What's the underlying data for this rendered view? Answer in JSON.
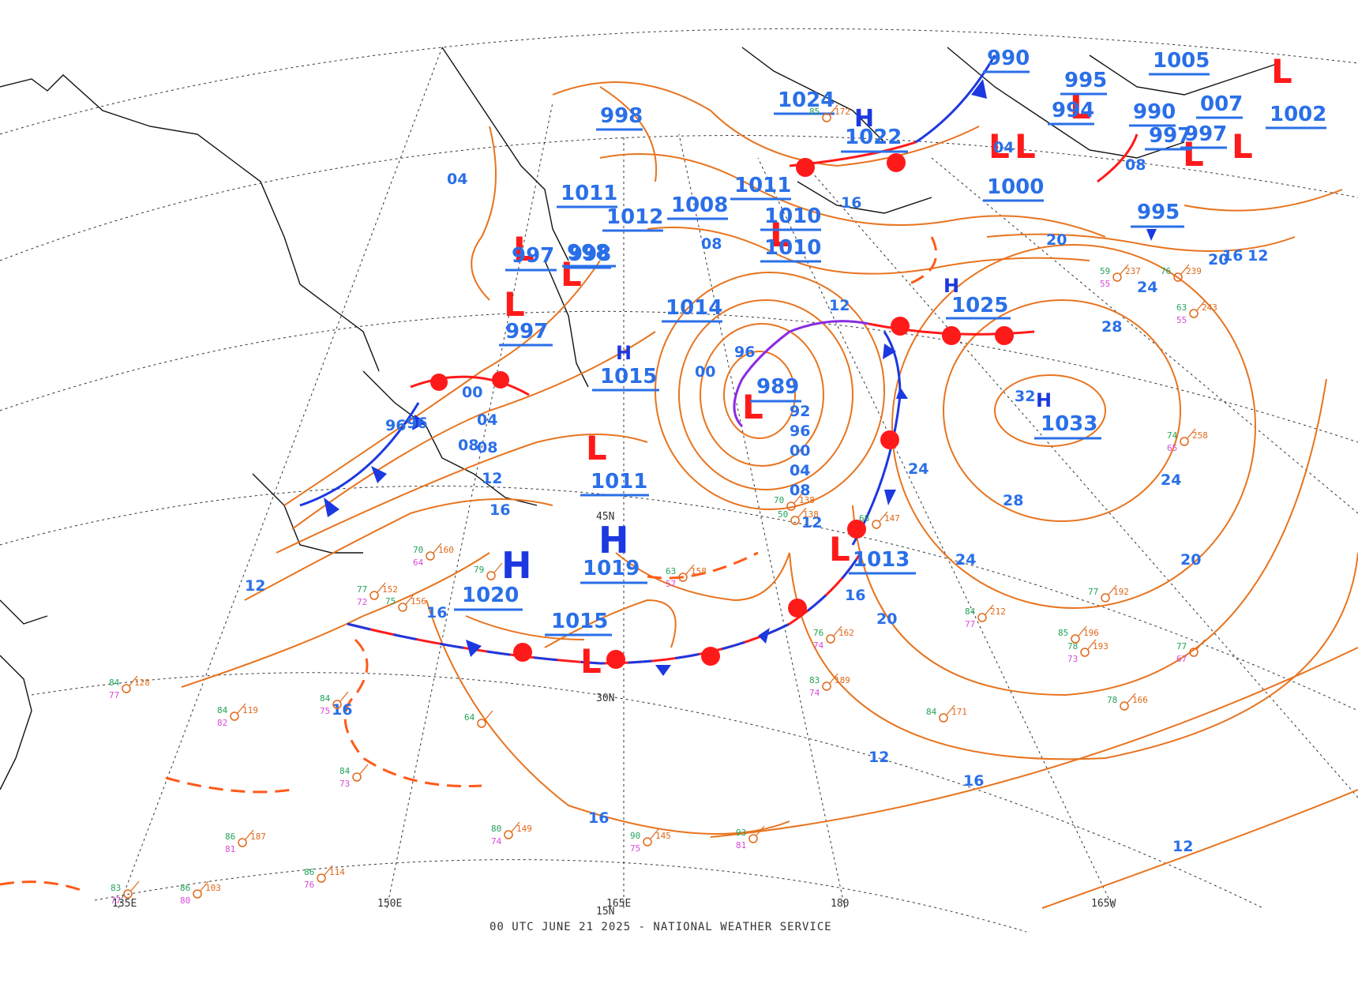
{
  "colors": {
    "isobar": "#e8741f",
    "label": "#2a6fe8",
    "high": "#1c38e0",
    "low": "#ff1a1a",
    "warm_front": "#ff1a1a",
    "cold_front": "#1c38e0",
    "occluded": "#8a2be2",
    "grid": "#333333",
    "coast": "#111111"
  },
  "footer": "00 UTC JUNE 21 2025 - NATIONAL WEATHER SERVICE",
  "grid_labels": {
    "lon": [
      "135E",
      "150E",
      "165E",
      "180",
      "165W"
    ],
    "lat": [
      "45N",
      "30N",
      "15N"
    ]
  },
  "highs": [
    {
      "id": "h1019",
      "value": "1019"
    },
    {
      "id": "h1020",
      "value": "1020"
    },
    {
      "id": "h1022",
      "value": "1022"
    },
    {
      "id": "h1033",
      "value": "1033"
    },
    {
      "id": "h1025",
      "value": "1025"
    },
    {
      "id": "h1015b",
      "value": "1015"
    }
  ],
  "lows": [
    {
      "id": "l989",
      "value": "989"
    },
    {
      "id": "l1011",
      "value": "1011"
    },
    {
      "id": "l997",
      "value": "997"
    },
    {
      "id": "l1013",
      "value": "1013"
    },
    {
      "id": "l1015",
      "value": "1015"
    },
    {
      "id": "l998",
      "value": "998"
    },
    {
      "id": "l995",
      "value": "995"
    },
    {
      "id": "l997b",
      "value": "997"
    }
  ],
  "other_center_values": [
    "998",
    "1024",
    "1011",
    "1012",
    "1008",
    "1010",
    "1014",
    "1010",
    "1011",
    "994",
    "990",
    "995",
    "1005",
    "007",
    "997",
    "1002",
    "990",
    "1000",
    "997",
    "998"
  ],
  "isobar_labels": [
    "96",
    "00",
    "04",
    "08",
    "12",
    "16",
    "12",
    "16",
    "16",
    "16",
    "20",
    "24",
    "28",
    "32",
    "28",
    "24",
    "20",
    "16",
    "12",
    "20",
    "24",
    "20",
    "16",
    "12",
    "04",
    "08",
    "92",
    "96",
    "00",
    "04",
    "08",
    "12",
    "16",
    "24",
    "96",
    "08",
    "12",
    "16",
    "04",
    "08",
    "96",
    "00",
    "04",
    "08",
    "12"
  ],
  "stations": [
    {
      "t": "77",
      "d": "72",
      "p": "152"
    },
    {
      "t": "75",
      "d": "",
      "p": "156"
    },
    {
      "t": "84",
      "d": "77",
      "p": "128"
    },
    {
      "t": "84",
      "d": "82",
      "p": "119"
    },
    {
      "t": "84",
      "d": "75",
      "p": ""
    },
    {
      "t": "64",
      "d": "",
      "p": ""
    },
    {
      "t": "84",
      "d": "73",
      "p": ""
    },
    {
      "t": "80",
      "d": "74",
      "p": "149"
    },
    {
      "t": "86",
      "d": "81",
      "p": "187"
    },
    {
      "t": "86",
      "d": "76",
      "p": "114"
    },
    {
      "t": "86",
      "d": "80",
      "p": "103"
    },
    {
      "t": "83",
      "d": "77",
      "p": ""
    },
    {
      "t": "90",
      "d": "75",
      "p": "145"
    },
    {
      "t": "93",
      "d": "81",
      "p": ""
    },
    {
      "t": "83",
      "d": "74",
      "p": "189"
    },
    {
      "t": "76",
      "d": "74",
      "p": "162"
    },
    {
      "t": "84",
      "d": "77",
      "p": "212"
    },
    {
      "t": "84",
      "d": "",
      "p": "171"
    },
    {
      "t": "78",
      "d": "73",
      "p": "193"
    },
    {
      "t": "77",
      "d": "",
      "p": "192"
    },
    {
      "t": "85",
      "d": "",
      "p": "196"
    },
    {
      "t": "78",
      "d": "",
      "p": "166"
    },
    {
      "t": "77",
      "d": "67",
      "p": ""
    },
    {
      "t": "74",
      "d": "65",
      "p": "258"
    },
    {
      "t": "63",
      "d": "55",
      "p": "243"
    },
    {
      "t": "59",
      "d": "55",
      "p": "237"
    },
    {
      "t": "76",
      "d": "",
      "p": "239"
    },
    {
      "t": "70",
      "d": "",
      "p": "138"
    },
    {
      "t": "68",
      "d": "",
      "p": "147"
    },
    {
      "t": "50",
      "d": "",
      "p": "138"
    },
    {
      "t": "63",
      "d": "57",
      "p": "158"
    },
    {
      "t": "70",
      "d": "64",
      "p": "160"
    },
    {
      "t": "79",
      "d": "",
      "p": ""
    },
    {
      "t": "85",
      "d": "",
      "p": "172"
    }
  ]
}
